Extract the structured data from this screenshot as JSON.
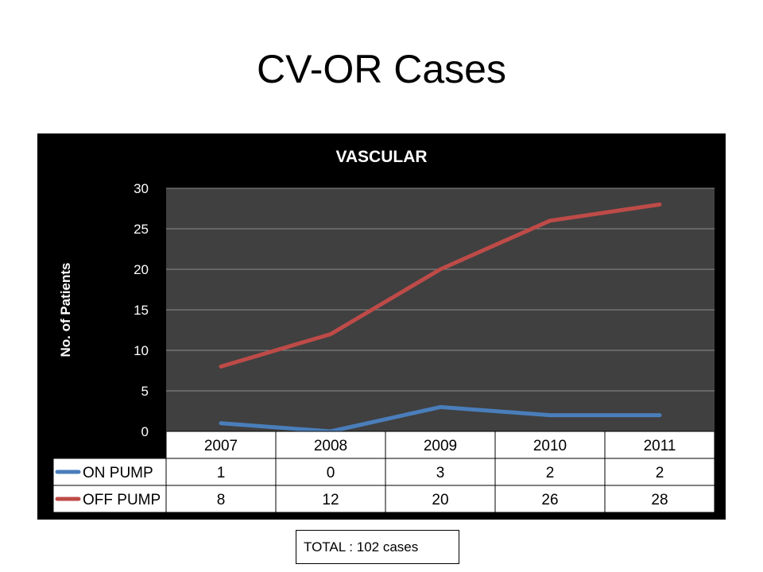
{
  "slide": {
    "title": "CV-OR Cases",
    "total_label": "TOTAL : 102 cases"
  },
  "colors": {
    "background": "#000000",
    "plot_area": "#404040",
    "gridline": "#8c8c8c",
    "text": "#ffffff",
    "on_pump": "#4a7ebb",
    "off_pump": "#be4b48"
  },
  "chart_data": {
    "type": "line",
    "title": "VASCULAR",
    "xlabel": "",
    "ylabel": "No. of Patients",
    "categories": [
      "2007",
      "2008",
      "2009",
      "2010",
      "2011"
    ],
    "ylim": [
      0,
      30
    ],
    "yticks": [
      0,
      5,
      10,
      15,
      20,
      25,
      30
    ],
    "grid": true,
    "legend": "data-table-left",
    "data_table": true,
    "series": [
      {
        "name": "ON PUMP",
        "color": "#4a7ebb",
        "values": [
          1,
          0,
          3,
          2,
          2
        ]
      },
      {
        "name": "OFF PUMP",
        "color": "#be4b48",
        "values": [
          8,
          12,
          20,
          26,
          28
        ]
      }
    ]
  }
}
